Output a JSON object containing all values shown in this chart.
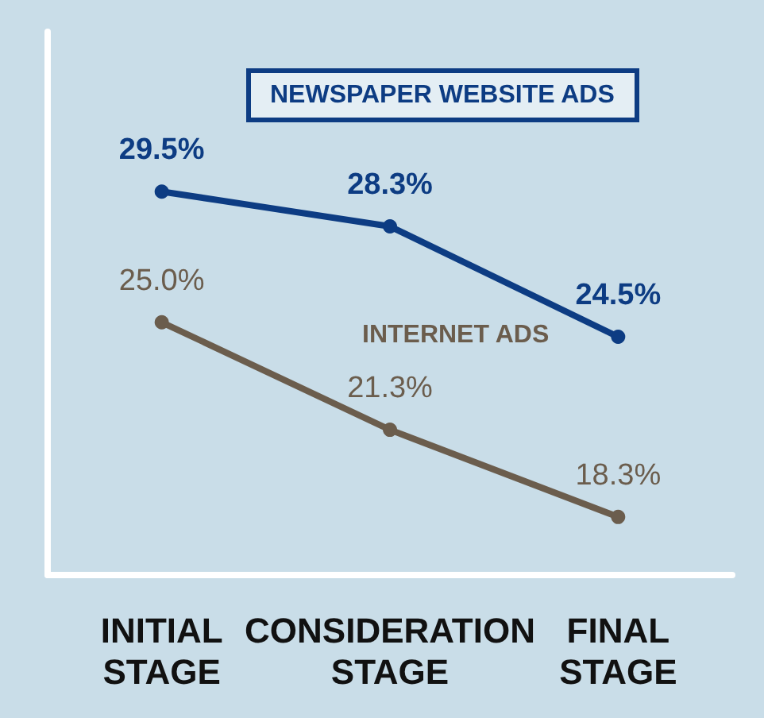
{
  "chart_data": {
    "type": "line",
    "categories": [
      "INITIAL STAGE",
      "CONSIDERATION STAGE",
      "FINAL STAGE"
    ],
    "series": [
      {
        "name": "NEWSPAPER WEBSITE ADS",
        "color": "#0d3c83",
        "values": [
          29.5,
          28.3,
          24.5
        ],
        "value_labels": [
          "29.5%",
          "28.3%",
          "24.5%"
        ]
      },
      {
        "name": "INTERNET ADS",
        "color": "#6b5d4d",
        "values": [
          25.0,
          21.3,
          18.3
        ],
        "value_labels": [
          "25.0%",
          "21.3%",
          "18.3%"
        ]
      }
    ],
    "ylim": [
      16.3,
      35
    ],
    "grid": false,
    "legend": false,
    "marker": "circle",
    "line_style": "solid",
    "tick_labels": "x"
  }
}
